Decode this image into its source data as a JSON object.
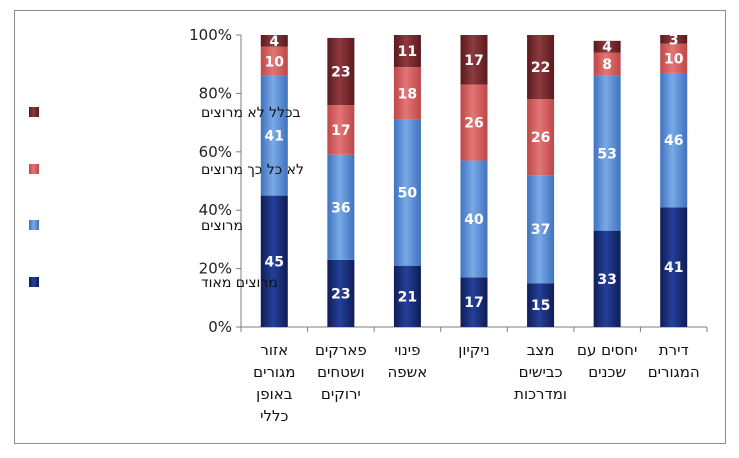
{
  "chart_data": {
    "type": "bar",
    "stacked": true,
    "percent": true,
    "title": "",
    "xlabel": "",
    "ylabel": "",
    "ylim": [
      0,
      100
    ],
    "yticks": [
      "0%",
      "20%",
      "40%",
      "60%",
      "80%",
      "100%"
    ],
    "legend_position": "left",
    "categories": [
      [
        "אזור",
        "מגורים",
        "באופן",
        "כללי"
      ],
      [
        "פארקים",
        "ושטחים",
        "ירוקים"
      ],
      [
        "פינוי",
        "אשפה"
      ],
      [
        "ניקיון"
      ],
      [
        "מצב",
        "כבישים",
        "ומדרכות"
      ],
      [
        "יחסים עם",
        "שכנים"
      ],
      [
        "דירת",
        "המגורים"
      ]
    ],
    "series": [
      {
        "name": "מרוצים מאוד",
        "color": "#1a2f78",
        "values": [
          45,
          23,
          21,
          17,
          15,
          33,
          41
        ]
      },
      {
        "name": "מרוצים",
        "color": "#5b8fd6",
        "values": [
          41,
          36,
          50,
          40,
          37,
          53,
          46
        ]
      },
      {
        "name": "לא כל כך מרוצים",
        "color": "#d55a5a",
        "values": [
          10,
          17,
          18,
          26,
          26,
          8,
          10
        ]
      },
      {
        "name": "בכלל לא מרוצים",
        "color": "#7a2a2e",
        "values": [
          4,
          23,
          11,
          17,
          22,
          4,
          3
        ]
      }
    ],
    "legend_order": [
      3,
      2,
      1,
      0
    ],
    "grid": false
  }
}
